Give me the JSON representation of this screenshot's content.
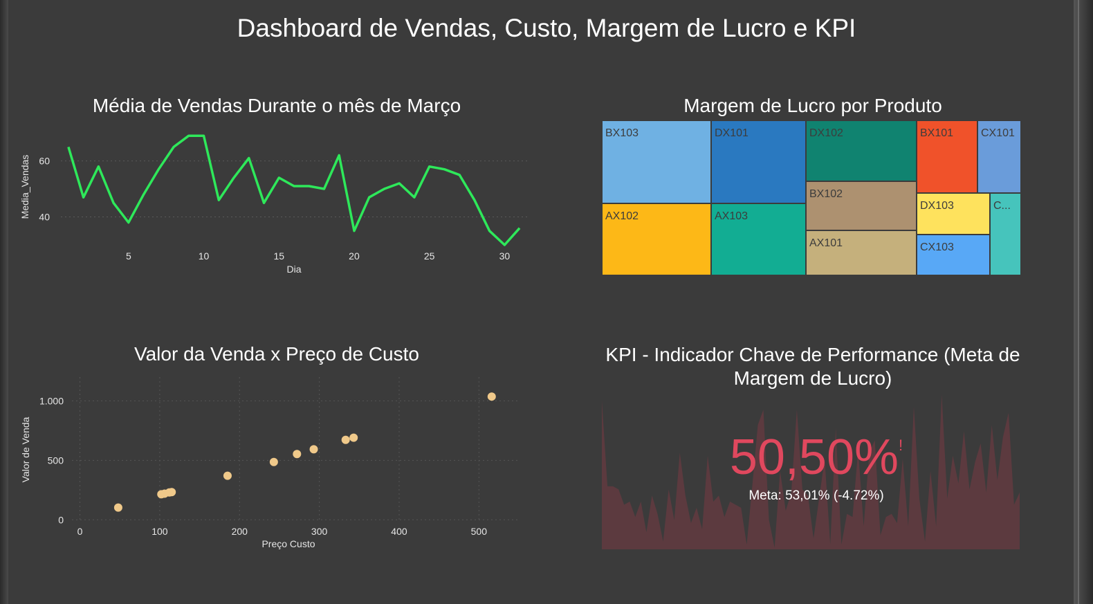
{
  "dashboard": {
    "title": "Dashboard de Vendas, Custo, Margem de Lucro e KPI"
  },
  "chart_data": [
    {
      "type": "line",
      "title": "Média de Vendas Durante o mês de Março",
      "xlabel": "Dia",
      "ylabel": "Media_Vendas",
      "x": [
        1,
        2,
        3,
        4,
        5,
        6,
        7,
        8,
        9,
        10,
        11,
        12,
        13,
        14,
        15,
        16,
        17,
        18,
        19,
        20,
        21,
        22,
        23,
        24,
        25,
        26,
        27,
        28,
        29,
        30,
        31
      ],
      "values": [
        65,
        47,
        58,
        45,
        38,
        48,
        57,
        65,
        69,
        69,
        46,
        54,
        61,
        45,
        54,
        51,
        51,
        50,
        62,
        35,
        47,
        50,
        52,
        47,
        58,
        57,
        55,
        46,
        35,
        30,
        36
      ],
      "xticks": [
        5,
        10,
        15,
        20,
        25,
        30
      ],
      "yticks": [
        40,
        60
      ],
      "xlim": [
        0.5,
        31.5
      ],
      "ylim": [
        29,
        73
      ],
      "grid": true,
      "color": "#2ee85a"
    },
    {
      "type": "treemap",
      "title": "Margem de Lucro por Produto",
      "items": [
        {
          "name": "BX103",
          "color": "#6fb1e3"
        },
        {
          "name": "DX101",
          "color": "#2a79c0"
        },
        {
          "name": "DX102",
          "color": "#108370"
        },
        {
          "name": "BX101",
          "color": "#f0522a"
        },
        {
          "name": "CX101",
          "color": "#6a9cda"
        },
        {
          "name": "AX102",
          "color": "#fdb817"
        },
        {
          "name": "AX103",
          "color": "#12ad93"
        },
        {
          "name": "BX102",
          "color": "#ad9170"
        },
        {
          "name": "AX101",
          "color": "#c5b07c"
        },
        {
          "name": "DX103",
          "color": "#fee25d"
        },
        {
          "name": "CX103",
          "color": "#58a8f6"
        },
        {
          "name": "C...",
          "color": "#46c4bc"
        }
      ]
    },
    {
      "type": "scatter",
      "title": "Valor da Venda x Preço de Custo",
      "xlabel": "Preço Custo",
      "ylabel": "Valor de Venda",
      "points": [
        {
          "x": 48,
          "y": 103
        },
        {
          "x": 102,
          "y": 215
        },
        {
          "x": 106,
          "y": 220
        },
        {
          "x": 112,
          "y": 230
        },
        {
          "x": 115,
          "y": 233
        },
        {
          "x": 185,
          "y": 370
        },
        {
          "x": 243,
          "y": 486
        },
        {
          "x": 272,
          "y": 553
        },
        {
          "x": 293,
          "y": 593
        },
        {
          "x": 333,
          "y": 672
        },
        {
          "x": 343,
          "y": 690
        },
        {
          "x": 516,
          "y": 1036
        }
      ],
      "xticks": [
        0,
        100,
        200,
        300,
        400,
        500
      ],
      "xtick_labels": [
        "0",
        "100",
        "200",
        "300",
        "400",
        "500"
      ],
      "yticks": [
        0,
        500,
        1000
      ],
      "ytick_labels": [
        "0",
        "500",
        "1.000"
      ],
      "xlim": [
        -10,
        550
      ],
      "ylim": [
        -10,
        1200
      ],
      "grid": true,
      "color": "#f0c98a"
    },
    {
      "type": "kpi",
      "title": "KPI - Indicador Chave de Performance (Meta de Margem de Lucro)",
      "value_label": "50,50%",
      "indicator": "!",
      "meta_label": "Meta: 53,01% (-4.72%)",
      "sparkline": [
        48,
        20,
        20,
        19,
        14,
        15,
        10,
        15,
        5,
        17,
        11,
        2,
        19,
        9,
        31,
        17,
        8,
        13,
        6,
        30,
        15,
        17,
        10,
        15,
        14,
        13,
        1,
        20,
        40,
        45,
        9,
        0,
        25,
        12,
        18,
        45,
        19,
        17,
        3,
        16,
        29,
        1,
        39,
        1,
        11,
        10,
        32,
        7,
        31,
        35,
        4,
        10,
        11,
        8,
        29,
        7,
        46,
        16,
        2,
        25,
        7,
        50,
        16,
        30,
        21,
        38,
        19,
        28,
        34,
        18,
        40,
        22,
        36,
        44,
        14,
        18
      ],
      "value_color": "#e0485e",
      "area_color": "#5c3a3f"
    }
  ]
}
